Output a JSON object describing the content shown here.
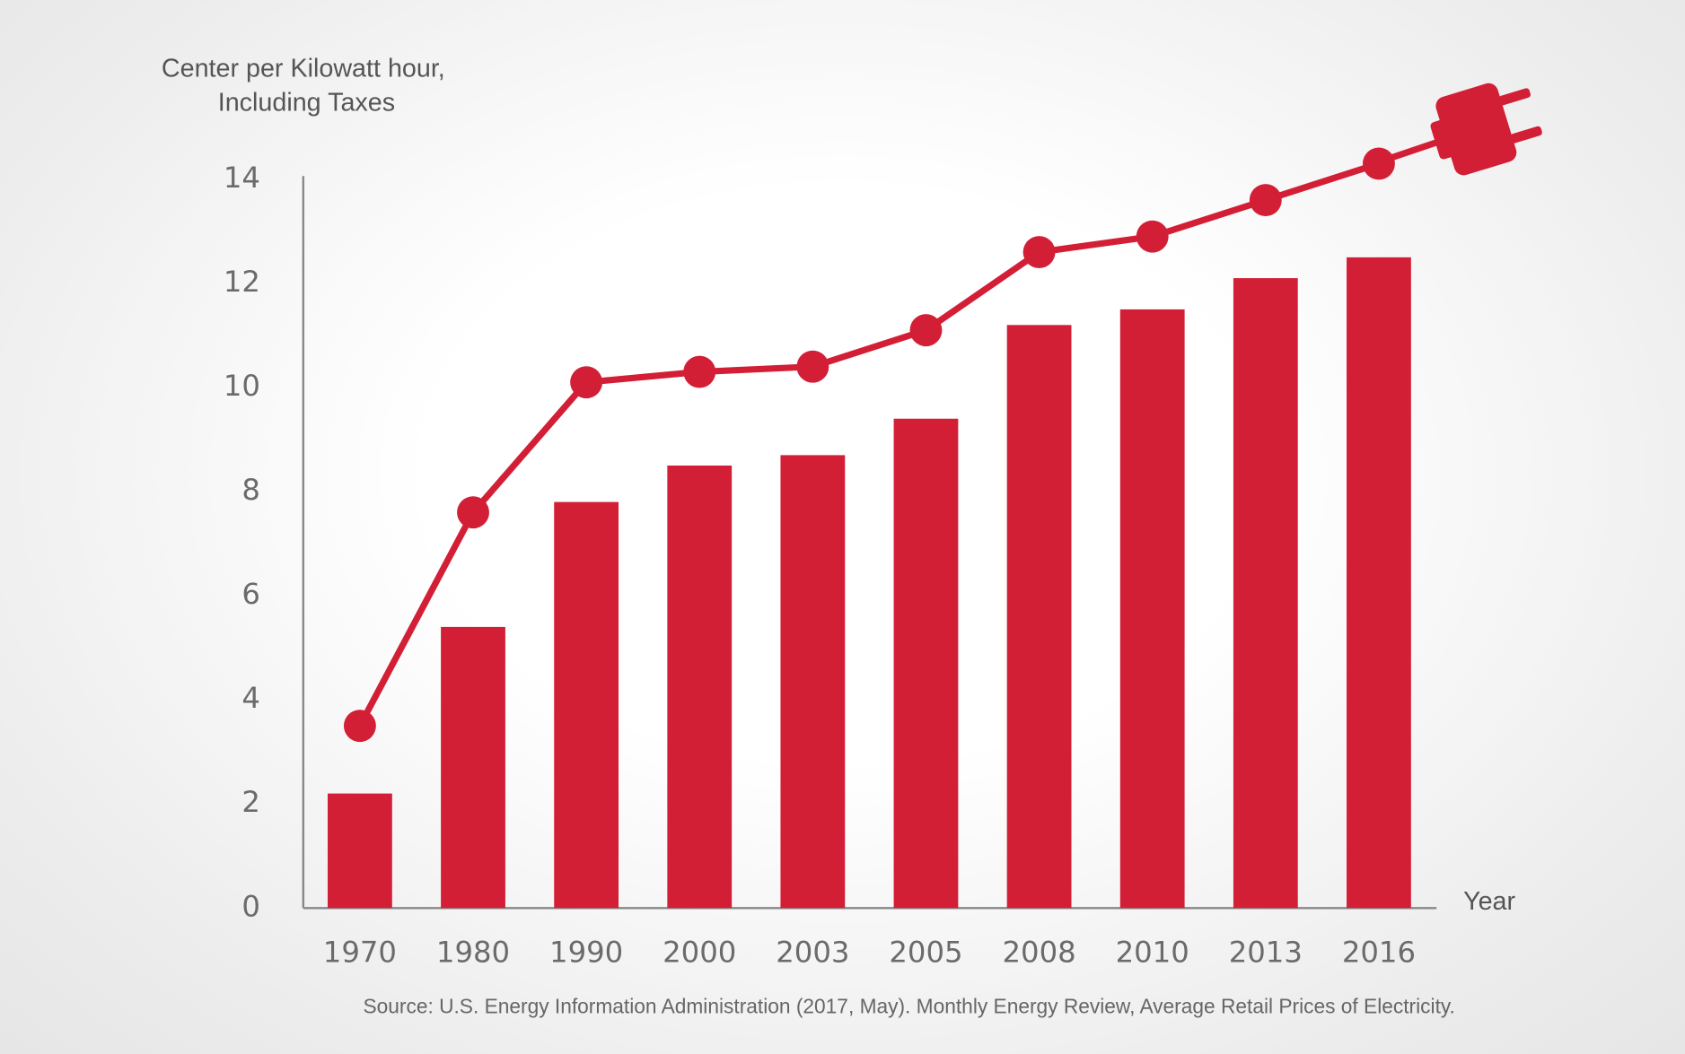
{
  "chart_data": {
    "type": "combo",
    "y_label": [
      "Center per Kilowatt hour,",
      "Including Taxes"
    ],
    "x_label": "Year",
    "source": "Source: U.S. Energy Information Administration (2017, May). Monthly Energy Review, Average Retail Prices of Electricity.",
    "categories": [
      "1970",
      "1980",
      "1990",
      "2000",
      "2003",
      "2005",
      "2008",
      "2010",
      "2013",
      "2016"
    ],
    "series": [
      {
        "type": "bar",
        "color": "#d31f36",
        "values": [
          2.2,
          5.4,
          7.8,
          8.5,
          8.7,
          9.4,
          11.2,
          11.5,
          12.1,
          12.5
        ]
      },
      {
        "type": "line",
        "color": "#d31f36",
        "values": [
          3.5,
          7.6,
          10.1,
          10.3,
          10.4,
          11.1,
          12.6,
          12.9,
          13.6,
          14.3
        ]
      }
    ],
    "ylim": [
      0,
      14
    ],
    "yticks": [
      0,
      2,
      4,
      6,
      8,
      10,
      12,
      14
    ],
    "grid": false
  }
}
